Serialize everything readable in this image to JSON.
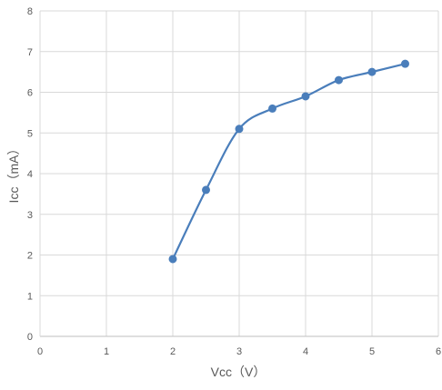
{
  "chart_data": {
    "type": "line",
    "title": "",
    "xlabel": "Vcc（V）",
    "ylabel": "Icc（mA）",
    "xlim": [
      0,
      6
    ],
    "ylim": [
      0,
      8
    ],
    "x_ticks": [
      0,
      1,
      2,
      3,
      4,
      5,
      6
    ],
    "y_ticks": [
      0,
      1,
      2,
      3,
      4,
      5,
      6,
      7,
      8
    ],
    "grid": true,
    "smooth": true,
    "legend": "none",
    "series": [
      {
        "color": "#4a7ebb",
        "x": [
          2,
          2.5,
          3,
          3.5,
          4,
          4.5,
          5,
          5.5
        ],
        "y": [
          1.9,
          3.6,
          5.1,
          5.6,
          5.9,
          6.3,
          6.5,
          6.7
        ]
      }
    ]
  }
}
